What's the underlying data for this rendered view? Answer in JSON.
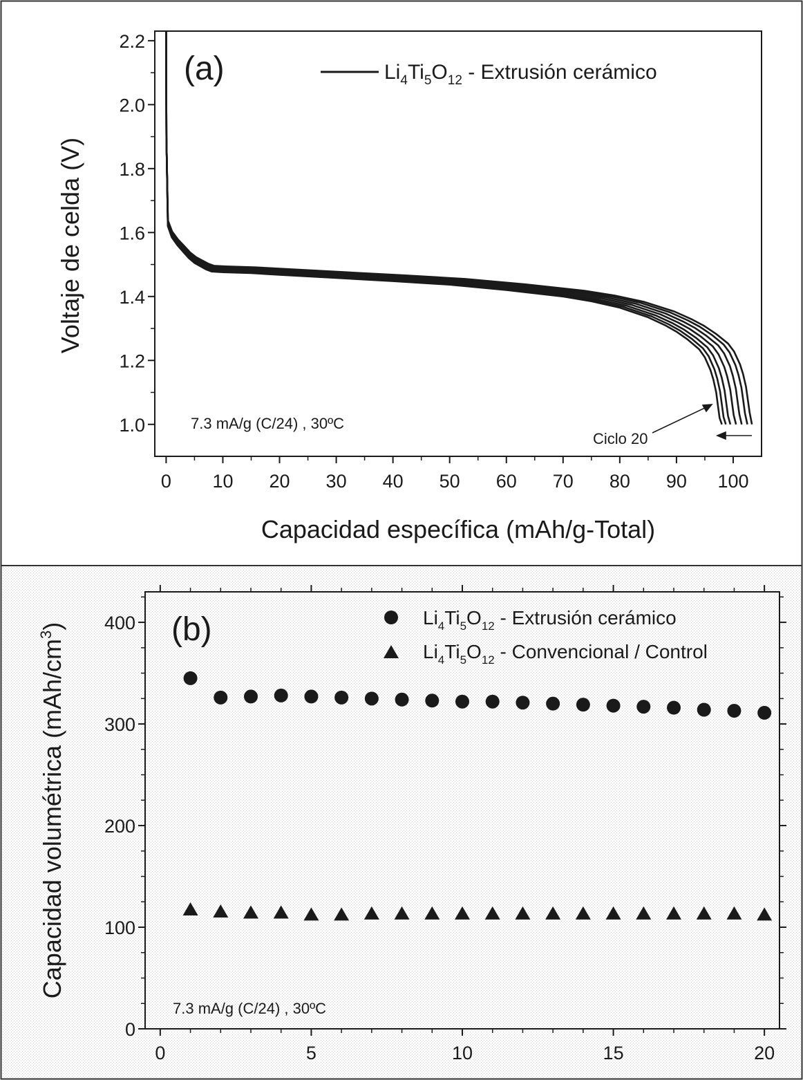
{
  "chart_data": [
    {
      "type": "line",
      "panel_label": "(a)",
      "xlabel": "Capacidad específica (mAh/g-Total)",
      "ylabel": "Voltaje de celda (V)",
      "xlim": [
        -2,
        105
      ],
      "ylim": [
        0.9,
        2.23
      ],
      "xticks": [
        0,
        10,
        20,
        30,
        40,
        50,
        60,
        70,
        80,
        90,
        100
      ],
      "yticks": [
        1.0,
        1.2,
        1.4,
        1.6,
        1.8,
        2.0,
        2.2
      ],
      "xtick_labels": [
        "0",
        "10",
        "20",
        "30",
        "40",
        "50",
        "60",
        "70",
        "80",
        "90",
        "100"
      ],
      "ytick_labels": [
        "1.0",
        "1.2",
        "1.4",
        "1.6",
        "1.8",
        "2.0",
        "2.2"
      ],
      "legend": {
        "label_prefix": "Li",
        "sub1": "4",
        "mid1": "Ti",
        "sub2": "5",
        "mid2": "O",
        "sub3": "12",
        "label_suffix": " - Extrusión cerámico",
        "position": "top-right"
      },
      "condition_text": "7.3 mA/g (C/24) , 30ºC",
      "cycle_annotation": "Ciclo 20",
      "base_curve": {
        "capacity": [
          0,
          0.05,
          0.3,
          1,
          2,
          3,
          4,
          5,
          6,
          7,
          8,
          10,
          15,
          20,
          30,
          40,
          50,
          60,
          70,
          75,
          80,
          85,
          88,
          90,
          92,
          94,
          95,
          96,
          96.5,
          97,
          97.3,
          97.6,
          98
        ],
        "voltage": [
          2.23,
          1.9,
          1.62,
          1.585,
          1.56,
          1.54,
          1.52,
          1.505,
          1.495,
          1.485,
          1.478,
          1.476,
          1.473,
          1.468,
          1.458,
          1.448,
          1.437,
          1.42,
          1.4,
          1.385,
          1.365,
          1.335,
          1.31,
          1.29,
          1.265,
          1.235,
          1.21,
          1.17,
          1.14,
          1.1,
          1.06,
          1.02,
          1.0
        ]
      },
      "series": [
        {
          "cycle": 1,
          "capacity_scale": 1.0542,
          "voltage_offset": 0.018
        },
        {
          "cycle": 2,
          "capacity_scale": 1.0459,
          "voltage_offset": 0.015
        },
        {
          "cycle": 3,
          "capacity_scale": 1.0357,
          "voltage_offset": 0.012
        },
        {
          "cycle": 5,
          "capacity_scale": 1.0255,
          "voltage_offset": 0.009
        },
        {
          "cycle": 10,
          "capacity_scale": 1.0153,
          "voltage_offset": 0.006
        },
        {
          "cycle": 15,
          "capacity_scale": 1.0071,
          "voltage_offset": 0.003
        },
        {
          "cycle": 20,
          "capacity_scale": 1.0,
          "voltage_offset": 0.0
        }
      ]
    },
    {
      "type": "scatter",
      "panel_label": "(b)",
      "ylabel_main": "Capacidad volumétrica (mAh/cm",
      "ylabel_sup": "3",
      "ylabel_close": ")",
      "xlim": [
        -0.5,
        20.5
      ],
      "ylim": [
        0,
        430
      ],
      "xticks": [
        0,
        5,
        10,
        15,
        20
      ],
      "yticks": [
        0,
        100,
        200,
        300,
        400
      ],
      "xtick_labels": [
        "0",
        "5",
        "10",
        "15",
        "20"
      ],
      "ytick_labels": [
        "0",
        "100",
        "200",
        "300",
        "400"
      ],
      "condition_text": "7.3 mA/g (C/24) , 30ºC",
      "x": [
        1,
        2,
        3,
        4,
        5,
        6,
        7,
        8,
        9,
        10,
        11,
        12,
        13,
        14,
        15,
        16,
        17,
        18,
        19,
        20
      ],
      "series": [
        {
          "name": "Li4Ti5O12 - Extrusión cerámico",
          "label_prefix": "Li",
          "sub1": "4",
          "mid1": "Ti",
          "sub2": "5",
          "mid2": "O",
          "sub3": "12",
          "label_suffix": " - Extrusión cerámico",
          "marker": "circle",
          "values": [
            345,
            326,
            327,
            328,
            327,
            326,
            325,
            324,
            323,
            322,
            322,
            321,
            320,
            319,
            318,
            317,
            316,
            314,
            313,
            311
          ]
        },
        {
          "name": "Li4Ti5O12 - Convencional / Control",
          "label_prefix": "Li",
          "sub1": "4",
          "mid1": "Ti",
          "sub2": "5",
          "mid2": "O",
          "sub3": "12",
          "label_suffix": " - Convencional / Control",
          "marker": "triangle",
          "values": [
            117,
            115,
            114,
            114,
            112,
            112,
            113,
            113,
            113,
            113,
            113,
            113,
            113,
            113,
            113,
            113,
            113,
            113,
            113,
            112
          ]
        }
      ],
      "legend_position": "top-right"
    }
  ]
}
